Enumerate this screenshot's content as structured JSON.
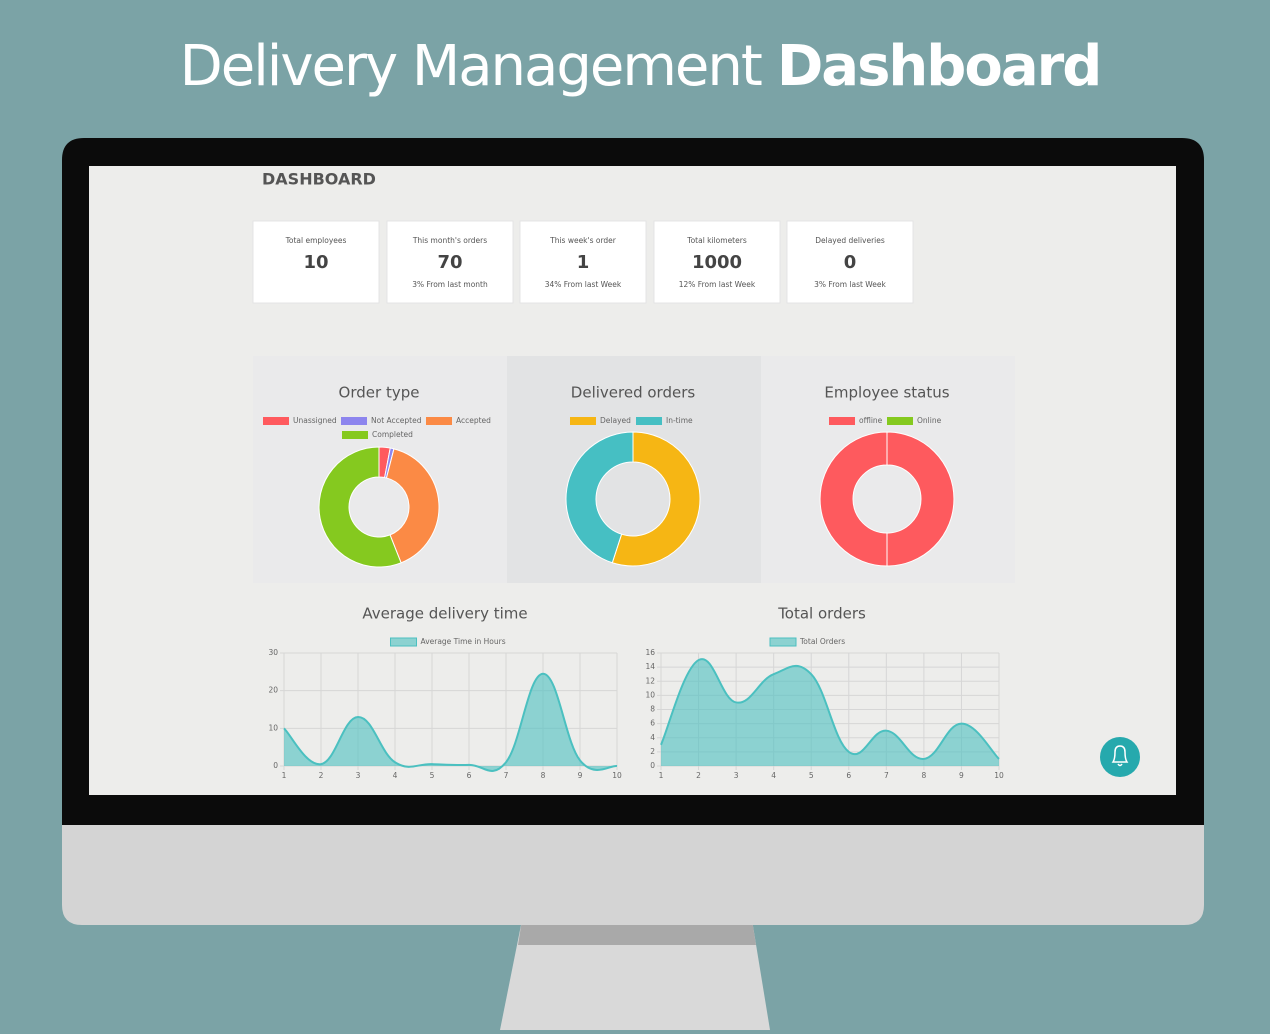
{
  "header": {
    "title_regular": "Delivery Management",
    "title_bold": "Dashboard"
  },
  "dashboard": {
    "title": "DASHBOARD",
    "cards": [
      {
        "label": "Total employees",
        "value": 10
      },
      {
        "label": "This month's orders",
        "value": 70,
        "note": "3% From last month"
      },
      {
        "label": "This week's order",
        "value": 1,
        "note": "34% From last Week"
      },
      {
        "label": "Total kilometers",
        "value": 1000,
        "note": "12% From last Week"
      },
      {
        "label": "Delayed deliveries",
        "value": 0,
        "note": "3% From last Week"
      }
    ]
  },
  "chart_data": [
    {
      "type": "doughnut",
      "title": "Order type",
      "categories": [
        "Unassigned",
        "Not Accepted",
        "Accepted",
        "Completed"
      ],
      "values": [
        3,
        1,
        40,
        56
      ],
      "colors": [
        "#ff5a5e",
        "#8d85ee",
        "#fb8a45",
        "#85c91f"
      ]
    },
    {
      "type": "doughnut",
      "title": "Delivered orders",
      "categories": [
        "Delayed",
        "In-time"
      ],
      "values": [
        55,
        45
      ],
      "colors": [
        "#f6b614",
        "#46bfc3"
      ]
    },
    {
      "type": "doughnut",
      "title": "Employee status",
      "categories": [
        "offline",
        "Online"
      ],
      "values": [
        100,
        0
      ],
      "colors": [
        "#fe5a5e",
        "#85c91f"
      ]
    },
    {
      "type": "area",
      "title": "Average delivery time",
      "x": [
        1,
        2,
        3,
        4,
        5,
        6,
        7,
        8,
        9,
        10
      ],
      "series": [
        {
          "name": "Average Time in Hours",
          "color": "#4bc0c0",
          "values": [
            10,
            0.5,
            13,
            1,
            0.5,
            0.3,
            1,
            24.5,
            1.5,
            0
          ]
        }
      ],
      "xlim": [
        1,
        10
      ],
      "xticks": [
        1,
        2,
        3,
        4,
        5,
        6,
        7,
        8,
        9,
        10
      ],
      "ylim": [
        0,
        30
      ],
      "yticks": [
        0,
        10,
        20,
        30
      ],
      "grid": true
    },
    {
      "type": "area",
      "title": "Total orders",
      "x": [
        1,
        2,
        3,
        4,
        5,
        6,
        7,
        8,
        9,
        10
      ],
      "series": [
        {
          "name": "Total Orders",
          "color": "#4bc0c0",
          "values": [
            3,
            15,
            9,
            13,
            13,
            2,
            5,
            1,
            6,
            1
          ]
        }
      ],
      "xlim": [
        1,
        10
      ],
      "xticks": [
        1,
        2,
        3,
        4,
        5,
        6,
        7,
        8,
        9,
        10
      ],
      "ylim": [
        0,
        16
      ],
      "yticks": [
        0,
        2,
        4,
        6,
        8,
        10,
        12,
        14,
        16
      ],
      "grid": true
    }
  ]
}
